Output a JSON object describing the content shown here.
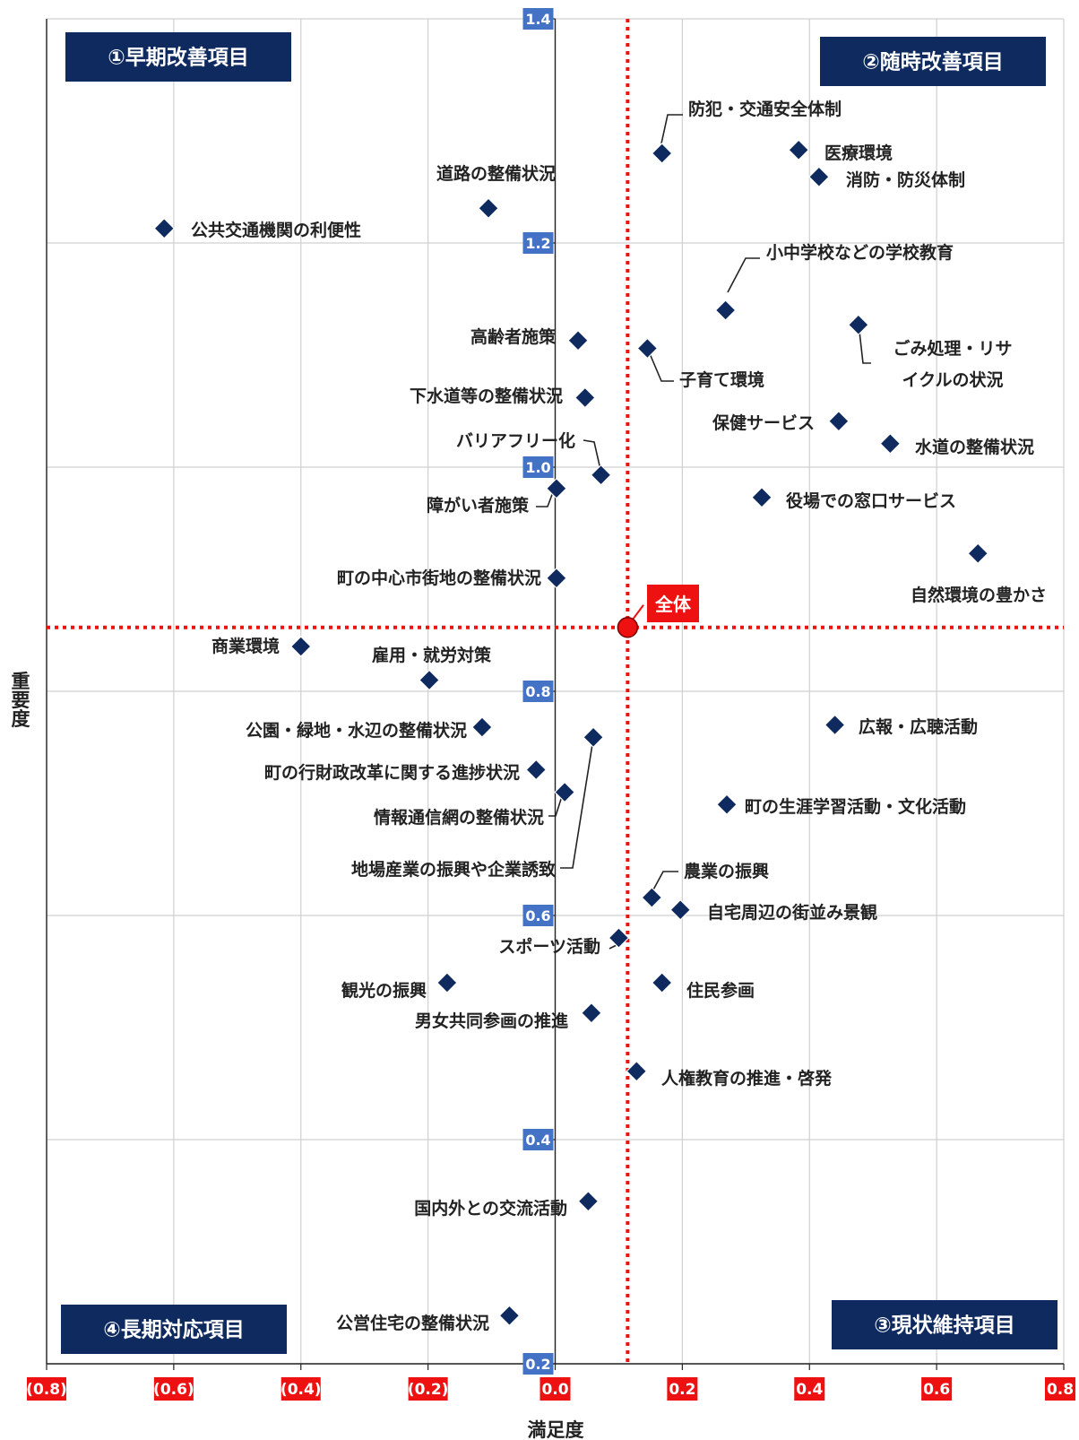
{
  "chart_data": {
    "type": "scatter",
    "xlabel": "満足度",
    "ylabel": "重要度",
    "xlim": [
      -0.8,
      0.8
    ],
    "ylim": [
      0.2,
      1.4
    ],
    "x_ticks": [
      {
        "value": -0.8,
        "label": "(0.8)"
      },
      {
        "value": -0.6,
        "label": "(0.6)"
      },
      {
        "value": -0.4,
        "label": "(0.4)"
      },
      {
        "value": -0.2,
        "label": "(0.2)"
      },
      {
        "value": 0.0,
        "label": "0.0"
      },
      {
        "value": 0.2,
        "label": "0.2"
      },
      {
        "value": 0.4,
        "label": "0.4"
      },
      {
        "value": 0.6,
        "label": "0.6"
      },
      {
        "value": 0.8,
        "label": "0.8"
      }
    ],
    "y_ticks": [
      {
        "value": 0.2,
        "label": "0.2"
      },
      {
        "value": 0.4,
        "label": "0.4"
      },
      {
        "value": 0.6,
        "label": "0.6"
      },
      {
        "value": 0.8,
        "label": "0.8"
      },
      {
        "value": 1.0,
        "label": "1.0"
      },
      {
        "value": 1.2,
        "label": "1.2"
      },
      {
        "value": 1.4,
        "label": "1.4"
      }
    ],
    "grid": true,
    "reference": {
      "label": "全体",
      "x": 0.114,
      "y": 0.857
    },
    "quadrants": [
      {
        "label": "①早期改善項目",
        "position": "top-left"
      },
      {
        "label": "②随時改善項目",
        "position": "top-right"
      },
      {
        "label": "③現状維持項目",
        "position": "bottom-right"
      },
      {
        "label": "④長期対応項目",
        "position": "bottom-left"
      }
    ],
    "points": [
      {
        "label": "防犯・交通安全体制",
        "x": 0.168,
        "y": 1.28
      },
      {
        "label": "医療環境",
        "x": 0.383,
        "y": 1.283
      },
      {
        "label": "消防・防災体制",
        "x": 0.415,
        "y": 1.259
      },
      {
        "label": "道路の整備状況",
        "x": -0.105,
        "y": 1.231
      },
      {
        "label": "公共交通機関の利便性",
        "x": -0.615,
        "y": 1.213
      },
      {
        "label": "小中学校などの学校教育",
        "x": 0.268,
        "y": 1.14
      },
      {
        "label": "ごみ処理・リサイクルの状況",
        "x": 0.477,
        "y": 1.127
      },
      {
        "label": "高齢者施策",
        "x": 0.036,
        "y": 1.113
      },
      {
        "label": "子育て環境",
        "x": 0.145,
        "y": 1.106
      },
      {
        "label": "下水道等の整備状況",
        "x": 0.047,
        "y": 1.062
      },
      {
        "label": "保健サービス",
        "x": 0.446,
        "y": 1.041
      },
      {
        "label": "水道の整備状況",
        "x": 0.527,
        "y": 1.021
      },
      {
        "label": "バリアフリー化",
        "x": 0.072,
        "y": 0.993
      },
      {
        "label": "障がい者施策",
        "x": 0.002,
        "y": 0.981
      },
      {
        "label": "役場での窓口サービス",
        "x": 0.325,
        "y": 0.973
      },
      {
        "label": "自然環境の豊かさ",
        "x": 0.665,
        "y": 0.923
      },
      {
        "label": "町の中心市街地の整備状況",
        "x": 0.002,
        "y": 0.901
      },
      {
        "label": "商業環境",
        "x": -0.4,
        "y": 0.84
      },
      {
        "label": "雇用・就労対策",
        "x": -0.198,
        "y": 0.81
      },
      {
        "label": "公園・緑地・水辺の整備状況",
        "x": -0.115,
        "y": 0.768
      },
      {
        "label": "広報・広聴活動",
        "x": 0.44,
        "y": 0.77
      },
      {
        "label": "地場産業の振興や企業誘致",
        "x": 0.06,
        "y": 0.759
      },
      {
        "label": "町の行財政改革に関する進捗状況",
        "x": -0.03,
        "y": 0.73
      },
      {
        "label": "情報通信網の整備状況",
        "x": 0.015,
        "y": 0.71
      },
      {
        "label": "町の生涯学習活動・文化活動",
        "x": 0.27,
        "y": 0.699
      },
      {
        "label": "農業の振興",
        "x": 0.152,
        "y": 0.616
      },
      {
        "label": "自宅周辺の街並み景観",
        "x": 0.197,
        "y": 0.605
      },
      {
        "label": "スポーツ活動",
        "x": 0.1,
        "y": 0.58
      },
      {
        "label": "観光の振興",
        "x": -0.17,
        "y": 0.54
      },
      {
        "label": "住民参画",
        "x": 0.168,
        "y": 0.54
      },
      {
        "label": "男女共同参画の推進",
        "x": 0.057,
        "y": 0.513
      },
      {
        "label": "人権教育の推進・啓発",
        "x": 0.128,
        "y": 0.461
      },
      {
        "label": "国内外との交流活動",
        "x": 0.052,
        "y": 0.345
      },
      {
        "label": "公営住宅の整備状況",
        "x": -0.072,
        "y": 0.243
      }
    ]
  }
}
